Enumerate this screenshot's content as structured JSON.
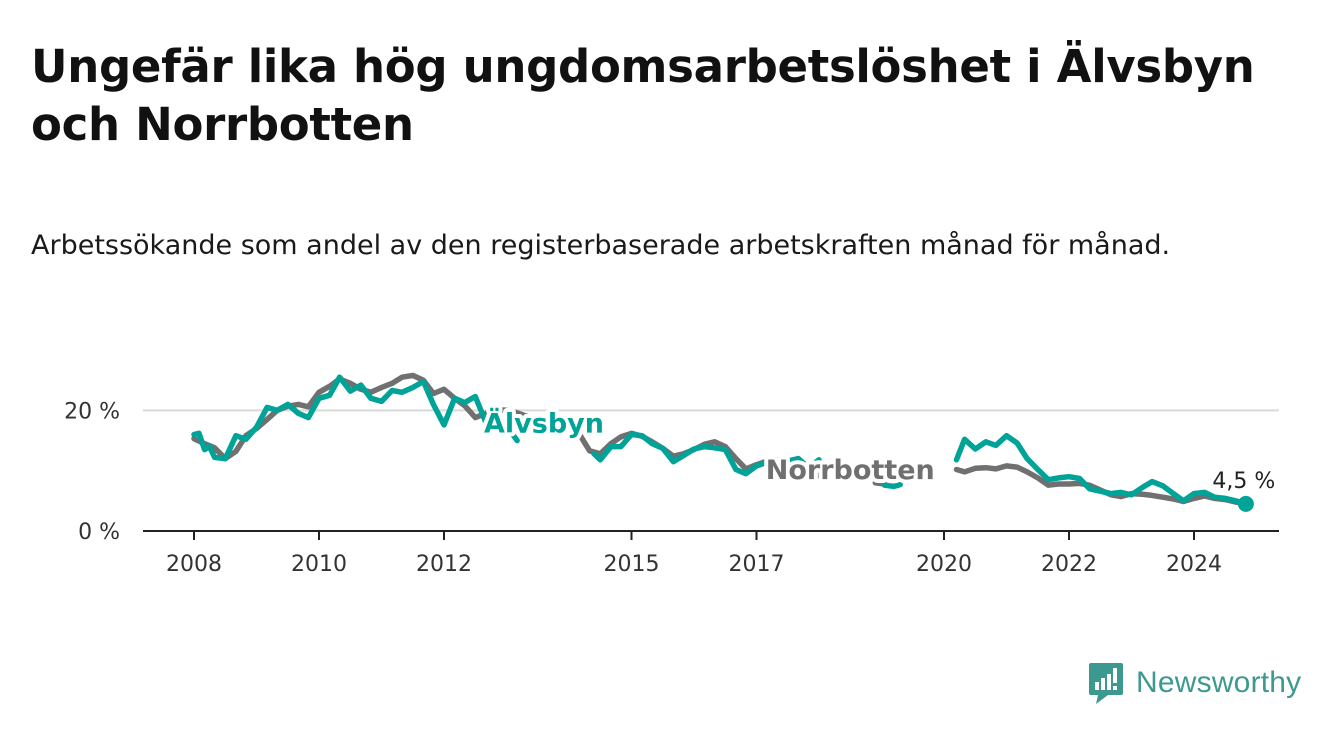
{
  "header": {
    "title": "Ungefär lika hög ungdomsarbetslöshet i Älvsbyn och Norrbotten",
    "subtitle": "Arbetssökande som andel av den registerbaserade arbetskraften månad för månad."
  },
  "brand": {
    "name": "Newsworthy",
    "icon": "bar-chart-exclamation-icon",
    "color": "#3d9990"
  },
  "chart_data": {
    "type": "line",
    "title": "Ungefär lika hög ungdomsarbetslöshet i Älvsbyn och Norrbotten",
    "subtitle": "Arbetssökande som andel av den registerbaserade arbetskraften månad för månad.",
    "xlabel": "",
    "ylabel": "",
    "xlim": [
      2007.75,
      2025.25
    ],
    "ylim": [
      0,
      25
    ],
    "grid": "horizontal",
    "y_ticks": [
      {
        "value": 0,
        "label": "0 %"
      },
      {
        "value": 20,
        "label": "20 %"
      }
    ],
    "x_ticks": [
      {
        "value": 2008,
        "label": "2008"
      },
      {
        "value": 2010,
        "label": "2010"
      },
      {
        "value": 2012,
        "label": "2012"
      },
      {
        "value": 2015,
        "label": "2015"
      },
      {
        "value": 2017,
        "label": "2017"
      },
      {
        "value": 2020,
        "label": "2020"
      },
      {
        "value": 2022,
        "label": "2022"
      },
      {
        "value": 2024,
        "label": "2024"
      }
    ],
    "series": [
      {
        "name": "Norrbotten",
        "color": "#707070",
        "label_pos": [
          2018.5,
          10.3
        ],
        "segments": [
          [
            [
              2008.0,
              15.3
            ],
            [
              2008.17,
              14.5
            ],
            [
              2008.33,
              13.8
            ],
            [
              2008.5,
              12.0
            ],
            [
              2008.67,
              13.2
            ],
            [
              2008.83,
              15.8
            ],
            [
              2009.0,
              17.0
            ],
            [
              2009.17,
              18.5
            ],
            [
              2009.33,
              20.0
            ],
            [
              2009.5,
              20.7
            ],
            [
              2009.67,
              21.0
            ],
            [
              2009.83,
              20.6
            ],
            [
              2010.0,
              23.0
            ],
            [
              2010.17,
              24.0
            ],
            [
              2010.33,
              25.2
            ],
            [
              2010.5,
              24.5
            ],
            [
              2010.67,
              23.5
            ],
            [
              2010.83,
              23.0
            ],
            [
              2011.0,
              23.8
            ],
            [
              2011.17,
              24.5
            ],
            [
              2011.33,
              25.5
            ],
            [
              2011.5,
              25.8
            ],
            [
              2011.67,
              25.0
            ],
            [
              2011.83,
              22.8
            ],
            [
              2012.0,
              23.5
            ],
            [
              2012.17,
              22.0
            ],
            [
              2012.33,
              20.8
            ],
            [
              2012.5,
              18.8
            ],
            [
              2012.67,
              19.5
            ],
            [
              2012.83,
              20.2
            ],
            [
              2013.0,
              20.0
            ],
            [
              2013.17,
              19.6
            ],
            [
              2013.33,
              19.0
            ],
            [
              2013.5,
              18.4
            ],
            [
              2013.67,
              18.9
            ],
            [
              2013.83,
              19.0
            ],
            [
              2014.0,
              18.0
            ],
            [
              2014.17,
              16.0
            ],
            [
              2014.33,
              13.3
            ],
            [
              2014.5,
              12.8
            ],
            [
              2014.67,
              14.5
            ],
            [
              2014.83,
              15.6
            ],
            [
              2015.0,
              16.2
            ],
            [
              2015.17,
              15.7
            ],
            [
              2015.33,
              14.8
            ],
            [
              2015.5,
              13.7
            ],
            [
              2015.67,
              12.4
            ],
            [
              2015.83,
              12.8
            ],
            [
              2016.0,
              13.5
            ],
            [
              2016.17,
              14.4
            ],
            [
              2016.33,
              14.8
            ],
            [
              2016.5,
              14.0
            ],
            [
              2016.67,
              12.0
            ],
            [
              2016.83,
              10.3
            ],
            [
              2017.0,
              11.0
            ],
            [
              2017.17,
              11.6
            ],
            [
              2017.33,
              11.8
            ],
            [
              2017.5,
              11.7
            ],
            [
              2017.67,
              10.2
            ],
            [
              2017.83,
              8.9
            ],
            [
              2018.0,
              9.2
            ]
          ],
          [
            [
              2018.9,
              8.0
            ],
            [
              2019.05,
              7.8
            ]
          ],
          [
            [
              2020.2,
              10.2
            ],
            [
              2020.33,
              9.8
            ],
            [
              2020.5,
              10.4
            ],
            [
              2020.67,
              10.5
            ],
            [
              2020.83,
              10.3
            ],
            [
              2021.0,
              10.8
            ],
            [
              2021.17,
              10.6
            ],
            [
              2021.33,
              9.8
            ],
            [
              2021.5,
              8.8
            ],
            [
              2021.67,
              7.6
            ],
            [
              2021.83,
              7.8
            ],
            [
              2022.0,
              7.8
            ],
            [
              2022.17,
              7.9
            ],
            [
              2022.33,
              7.6
            ],
            [
              2022.5,
              6.8
            ],
            [
              2022.67,
              6.0
            ],
            [
              2022.83,
              5.7
            ],
            [
              2023.0,
              6.2
            ],
            [
              2023.17,
              6.1
            ],
            [
              2023.33,
              5.9
            ],
            [
              2023.5,
              5.6
            ],
            [
              2023.67,
              5.3
            ],
            [
              2023.83,
              4.9
            ],
            [
              2024.0,
              5.4
            ],
            [
              2024.17,
              5.8
            ],
            [
              2024.33,
              5.4
            ],
            [
              2024.5,
              5.2
            ],
            [
              2024.67,
              4.8
            ],
            [
              2024.83,
              4.6
            ]
          ]
        ]
      },
      {
        "name": "Älvsbyn",
        "color": "#00a398",
        "label_pos": [
          2013.6,
          18.0
        ],
        "end_label": "4,5 %",
        "end_value": [
          2024.83,
          4.5
        ],
        "segments": [
          [
            [
              2008.0,
              16.0
            ],
            [
              2008.08,
              16.2
            ],
            [
              2008.17,
              13.5
            ],
            [
              2008.25,
              14.0
            ],
            [
              2008.33,
              12.2
            ],
            [
              2008.5,
              12.0
            ],
            [
              2008.67,
              15.8
            ],
            [
              2008.83,
              15.2
            ],
            [
              2009.0,
              17.2
            ],
            [
              2009.17,
              20.5
            ],
            [
              2009.33,
              20.0
            ],
            [
              2009.5,
              21.0
            ],
            [
              2009.67,
              19.5
            ],
            [
              2009.83,
              18.8
            ],
            [
              2010.0,
              22.0
            ],
            [
              2010.17,
              22.5
            ],
            [
              2010.33,
              25.5
            ],
            [
              2010.5,
              23.2
            ],
            [
              2010.67,
              24.2
            ],
            [
              2010.83,
              22.0
            ],
            [
              2011.0,
              21.5
            ],
            [
              2011.17,
              23.3
            ],
            [
              2011.33,
              23.0
            ],
            [
              2011.5,
              23.8
            ],
            [
              2011.67,
              24.8
            ],
            [
              2011.83,
              21.0
            ],
            [
              2012.0,
              17.6
            ],
            [
              2012.17,
              22.0
            ],
            [
              2012.33,
              21.3
            ],
            [
              2012.5,
              22.3
            ],
            [
              2012.67,
              18.0
            ],
            [
              2012.83,
              19.5
            ],
            [
              2013.0,
              17.5
            ],
            [
              2013.17,
              15.0
            ]
          ],
          [
            [
              2014.4,
              12.8
            ],
            [
              2014.5,
              11.8
            ],
            [
              2014.67,
              14.0
            ],
            [
              2014.83,
              14.0
            ],
            [
              2015.0,
              16.0
            ],
            [
              2015.17,
              15.8
            ],
            [
              2015.33,
              14.5
            ],
            [
              2015.5,
              13.7
            ],
            [
              2015.67,
              11.5
            ],
            [
              2015.83,
              12.5
            ],
            [
              2016.0,
              13.6
            ],
            [
              2016.17,
              14.0
            ],
            [
              2016.33,
              13.8
            ],
            [
              2016.5,
              13.5
            ],
            [
              2016.67,
              10.2
            ],
            [
              2016.83,
              9.5
            ],
            [
              2017.0,
              10.8
            ],
            [
              2017.17,
              11.4
            ],
            [
              2017.33,
              11.4
            ],
            [
              2017.5,
              11.6
            ],
            [
              2017.67,
              12.0
            ],
            [
              2017.83,
              10.5
            ],
            [
              2018.0,
              11.8
            ]
          ],
          [
            [
              2019.05,
              7.6
            ],
            [
              2019.2,
              7.4
            ],
            [
              2019.3,
              7.7
            ]
          ],
          [
            [
              2020.2,
              11.8
            ],
            [
              2020.33,
              15.2
            ],
            [
              2020.5,
              13.6
            ],
            [
              2020.67,
              14.8
            ],
            [
              2020.83,
              14.2
            ],
            [
              2021.0,
              15.8
            ],
            [
              2021.17,
              14.6
            ],
            [
              2021.33,
              12.0
            ],
            [
              2021.5,
              10.2
            ],
            [
              2021.67,
              8.5
            ],
            [
              2021.83,
              8.8
            ],
            [
              2022.0,
              9.0
            ],
            [
              2022.17,
              8.7
            ],
            [
              2022.33,
              7.0
            ],
            [
              2022.5,
              6.6
            ],
            [
              2022.67,
              6.2
            ],
            [
              2022.83,
              6.4
            ],
            [
              2023.0,
              6.0
            ],
            [
              2023.17,
              7.2
            ],
            [
              2023.33,
              8.2
            ],
            [
              2023.5,
              7.5
            ],
            [
              2023.67,
              6.2
            ],
            [
              2023.83,
              5.0
            ],
            [
              2024.0,
              6.2
            ],
            [
              2024.17,
              6.4
            ],
            [
              2024.33,
              5.6
            ],
            [
              2024.5,
              5.4
            ],
            [
              2024.67,
              5.0
            ],
            [
              2024.83,
              4.5
            ]
          ]
        ]
      }
    ]
  }
}
